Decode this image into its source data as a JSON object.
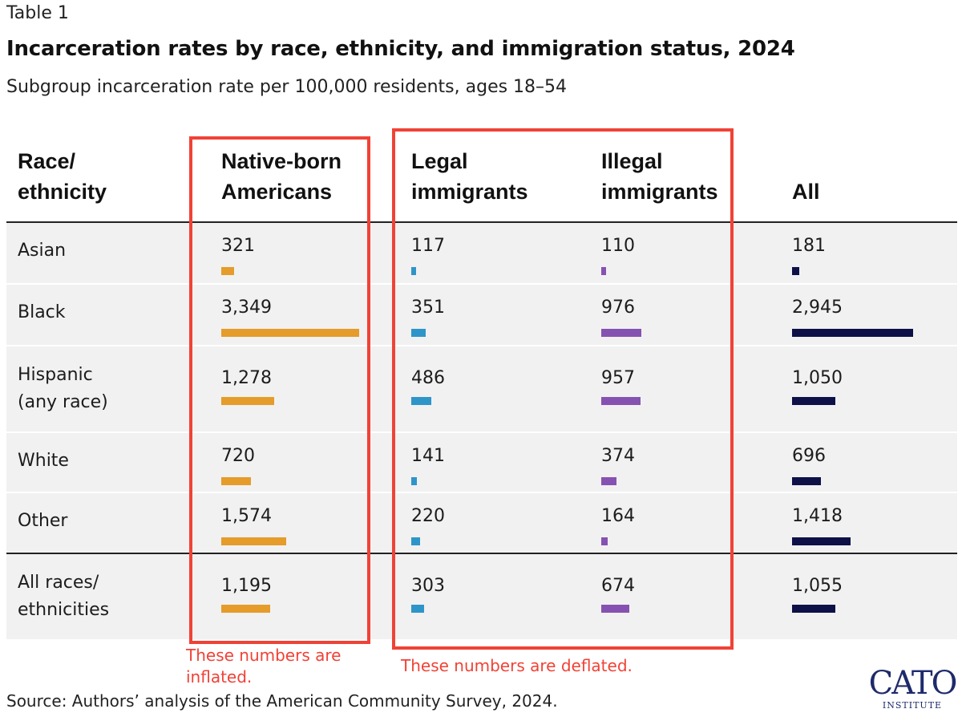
{
  "table_label": "Table 1",
  "title": "Incarceration rates by race, ethnicity, and immigration status, 2024",
  "subtitle": "Subgroup incarceration rate per 100,000 residents, ages 18–54",
  "chart_data": {
    "type": "table",
    "title": "Incarceration rates by race, ethnicity, and immigration status, 2024",
    "subtitle": "Subgroup incarceration rate per 100,000 residents, ages 18–54",
    "columns": [
      {
        "key": "group",
        "label_lines": [
          "Race/",
          "ethnicity"
        ]
      },
      {
        "key": "native",
        "label_lines": [
          "Native-born",
          "Americans"
        ],
        "color": "#e59c2a"
      },
      {
        "key": "legal",
        "label_lines": [
          "Legal",
          "immigrants"
        ],
        "color": "#2e95c8"
      },
      {
        "key": "illegal",
        "label_lines": [
          "Illegal",
          "immigrants"
        ],
        "color": "#8652b1"
      },
      {
        "key": "all",
        "label_lines": [
          "All"
        ],
        "color": "#0d1148"
      }
    ],
    "bar_scale_max": 3349,
    "rows": [
      {
        "label_lines": [
          "Asian"
        ],
        "native": 321,
        "legal": 117,
        "illegal": 110,
        "all": 181,
        "display": {
          "native": "321",
          "legal": "117",
          "illegal": "110",
          "all": "181"
        }
      },
      {
        "label_lines": [
          "Black"
        ],
        "native": 3349,
        "legal": 351,
        "illegal": 976,
        "all": 2945,
        "display": {
          "native": "3,349",
          "legal": "351",
          "illegal": "976",
          "all": "2,945"
        }
      },
      {
        "label_lines": [
          "Hispanic",
          "(any race)"
        ],
        "native": 1278,
        "legal": 486,
        "illegal": 957,
        "all": 1050,
        "display": {
          "native": "1,278",
          "legal": "486",
          "illegal": "957",
          "all": "1,050"
        }
      },
      {
        "label_lines": [
          "White"
        ],
        "native": 720,
        "legal": 141,
        "illegal": 374,
        "all": 696,
        "display": {
          "native": "720",
          "legal": "141",
          "illegal": "374",
          "all": "696"
        }
      },
      {
        "label_lines": [
          "Other"
        ],
        "native": 1574,
        "legal": 220,
        "illegal": 164,
        "all": 1418,
        "display": {
          "native": "1,574",
          "legal": "220",
          "illegal": "164",
          "all": "1,418"
        }
      },
      {
        "label_lines": [
          "All races/",
          "ethnicities"
        ],
        "native": 1195,
        "legal": 303,
        "illegal": 674,
        "all": 1055,
        "display": {
          "native": "1,195",
          "legal": "303",
          "illegal": "674",
          "all": "1,055"
        }
      }
    ]
  },
  "annotations": {
    "inflated_lines": [
      "These numbers are",
      "inflated."
    ],
    "deflated": "These numbers are deflated.",
    "box_color": "#f04236"
  },
  "source": "Source: Authors’ analysis of the American Community Survey, 2024.",
  "logo": {
    "main": "CATO",
    "sub": "INSTITUTE"
  }
}
